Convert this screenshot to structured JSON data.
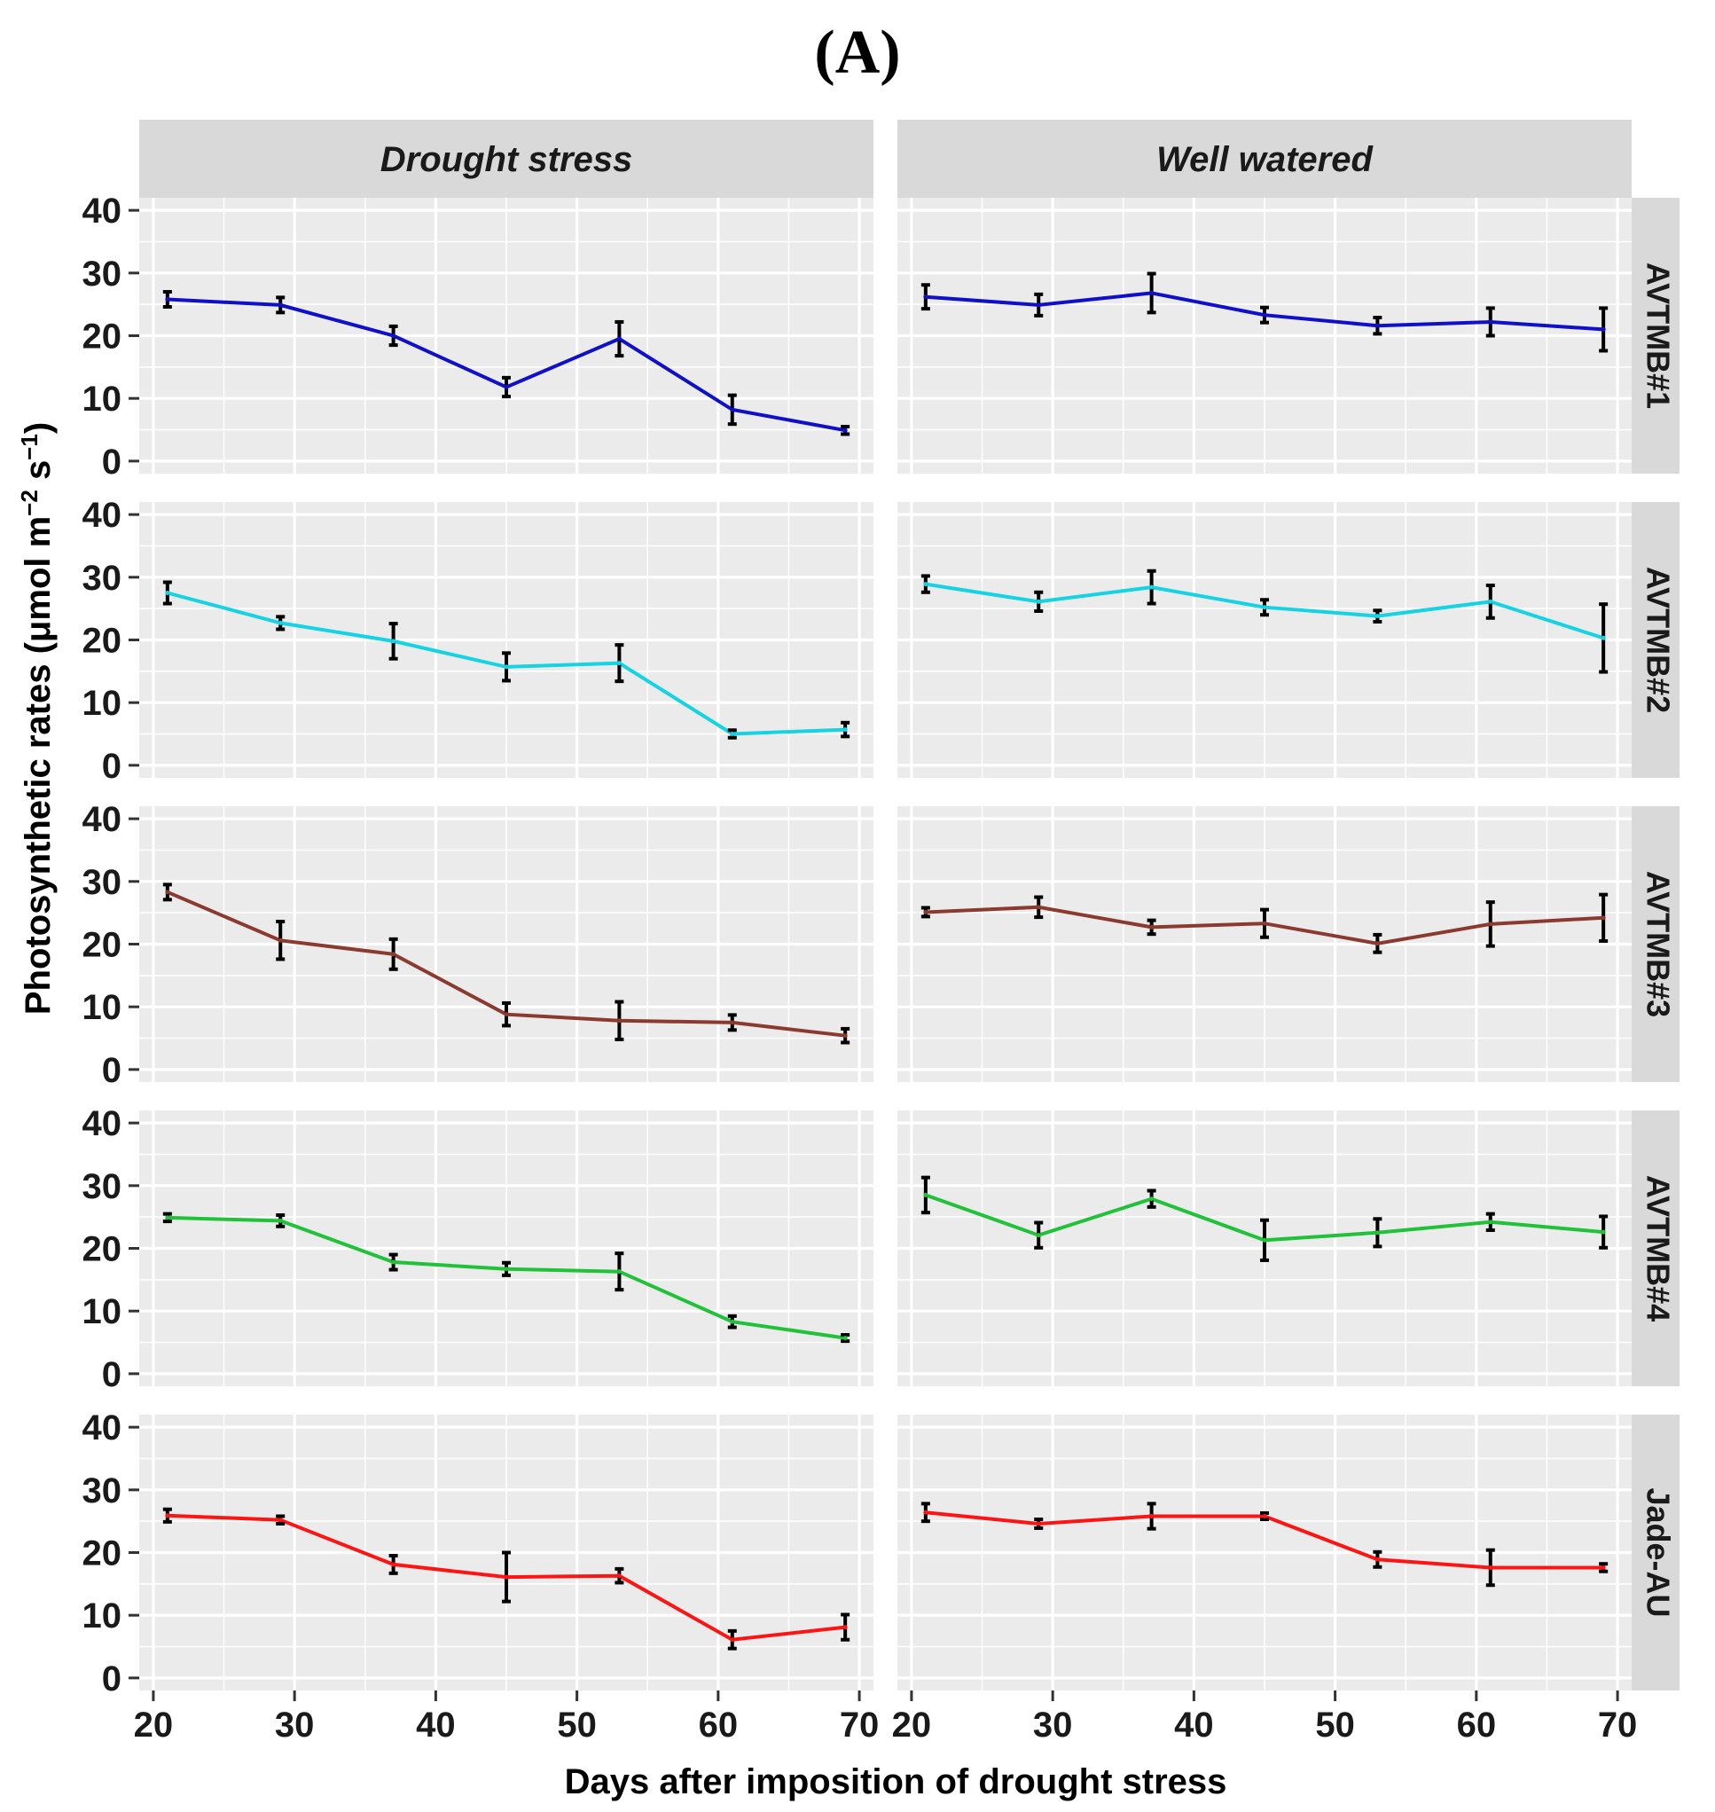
{
  "figure_label": "(A)",
  "chart_data": {
    "type": "line",
    "title": "(A)",
    "xlabel": "Days after imposition of drought stress",
    "ylabel": "Photosynthetic rates (μmol m⁻² s⁻¹)",
    "ylabel_parts": {
      "main": "Photosynthetic rates (μmol m",
      "sup1": "−2",
      "mid": " s",
      "sup2": "−1",
      "end": ")"
    },
    "xlim": [
      19,
      71
    ],
    "ylim": [
      -2,
      42
    ],
    "xticks": [
      20,
      30,
      40,
      50,
      60,
      70
    ],
    "yticks": [
      0,
      10,
      20,
      30,
      40
    ],
    "x": [
      21,
      29,
      37,
      45,
      53,
      61,
      69
    ],
    "conditions": [
      "Drought stress",
      "Well watered"
    ],
    "facets": [
      {
        "name": "AVTMB#1",
        "color": "#1010c8",
        "series": [
          {
            "condition": "Drought stress",
            "values": [
              25.8,
              24.9,
              20.0,
              11.8,
              19.5,
              8.2,
              4.9
            ],
            "errors": [
              1.2,
              1.2,
              1.5,
              1.5,
              2.7,
              2.3,
              0.6
            ]
          },
          {
            "condition": "Well watered",
            "values": [
              26.2,
              24.9,
              26.8,
              23.3,
              21.6,
              22.2,
              21.0
            ],
            "errors": [
              1.9,
              1.7,
              3.1,
              1.2,
              1.3,
              2.2,
              3.4
            ]
          }
        ]
      },
      {
        "name": "AVTMB#2",
        "color": "#16d3e3",
        "series": [
          {
            "condition": "Drought stress",
            "values": [
              27.5,
              22.7,
              19.8,
              15.7,
              16.3,
              5.0,
              5.7
            ],
            "errors": [
              1.7,
              1.0,
              2.8,
              2.2,
              2.9,
              0.6,
              1.1
            ]
          },
          {
            "condition": "Well watered",
            "values": [
              28.9,
              26.1,
              28.4,
              25.2,
              23.8,
              26.1,
              20.3
            ],
            "errors": [
              1.3,
              1.5,
              2.6,
              1.2,
              0.9,
              2.6,
              5.4
            ]
          }
        ]
      },
      {
        "name": "AVTMB#3",
        "color": "#8b3a2f",
        "series": [
          {
            "condition": "Drought stress",
            "values": [
              28.3,
              20.6,
              18.4,
              8.8,
              7.8,
              7.5,
              5.4
            ],
            "errors": [
              1.2,
              3.0,
              2.4,
              1.8,
              3.0,
              1.2,
              1.1
            ]
          },
          {
            "condition": "Well watered",
            "values": [
              25.1,
              25.9,
              22.7,
              23.3,
              20.1,
              23.2,
              24.2
            ],
            "errors": [
              0.7,
              1.6,
              1.1,
              2.2,
              1.4,
              3.5,
              3.7
            ]
          }
        ]
      },
      {
        "name": "AVTMB#4",
        "color": "#21c23a",
        "series": [
          {
            "condition": "Drought stress",
            "values": [
              24.9,
              24.4,
              17.8,
              16.7,
              16.3,
              8.3,
              5.7
            ],
            "errors": [
              0.6,
              0.9,
              1.2,
              1.0,
              2.9,
              0.9,
              0.5
            ]
          },
          {
            "condition": "Well watered",
            "values": [
              28.5,
              22.1,
              27.9,
              21.3,
              22.5,
              24.2,
              22.6
            ],
            "errors": [
              2.8,
              2.0,
              1.3,
              3.2,
              2.2,
              1.3,
              2.5
            ]
          }
        ]
      },
      {
        "name": "Jade-AU",
        "color": "#ff1414",
        "series": [
          {
            "condition": "Drought stress",
            "values": [
              25.9,
              25.2,
              18.1,
              16.1,
              16.3,
              6.1,
              8.1
            ],
            "errors": [
              1.0,
              0.6,
              1.4,
              3.9,
              1.1,
              1.4,
              2.0
            ]
          },
          {
            "condition": "Well watered",
            "values": [
              26.4,
              24.6,
              25.8,
              25.8,
              18.9,
              17.6,
              17.6
            ],
            "errors": [
              1.4,
              0.7,
              2.0,
              0.5,
              1.2,
              2.8,
              0.6
            ]
          }
        ]
      }
    ]
  }
}
